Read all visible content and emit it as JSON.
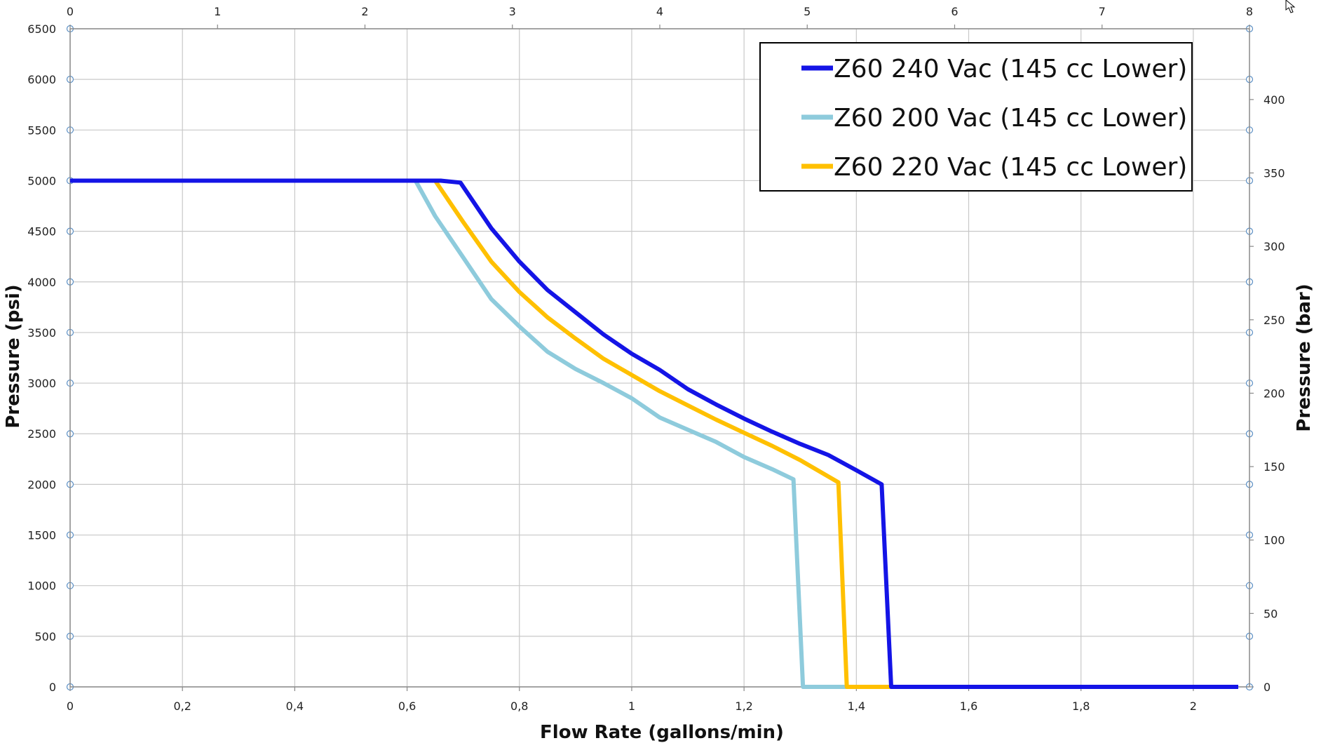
{
  "chart_data": {
    "type": "line",
    "title": "",
    "xlabel": "Flow Rate (gallons/min)",
    "ylabel": "Pressure (psi)",
    "y2label": "Pressure (bar)",
    "xlim": [
      0,
      2.1
    ],
    "ylim": [
      0,
      6500
    ],
    "x_ticks": [
      "0",
      "0,2",
      "0,4",
      "0,6",
      "0,8",
      "1",
      "1,2",
      "1,4",
      "1,6",
      "1,8",
      "2"
    ],
    "x_tick_values": [
      0,
      0.2,
      0.4,
      0.6,
      0.8,
      1.0,
      1.2,
      1.4,
      1.6,
      1.8,
      2.0
    ],
    "y_ticks": [
      "0",
      "500",
      "1000",
      "1500",
      "2000",
      "2500",
      "3000",
      "3500",
      "4000",
      "4500",
      "5000",
      "5500",
      "6000",
      "6500"
    ],
    "y_tick_values": [
      0,
      500,
      1000,
      1500,
      2000,
      2500,
      3000,
      3500,
      4000,
      4500,
      5000,
      5500,
      6000,
      6500
    ],
    "x2lim": [
      0,
      8
    ],
    "x2_ticks": [
      "0",
      "1",
      "2",
      "3",
      "4",
      "5",
      "6",
      "7",
      "8"
    ],
    "x2_tick_values": [
      0,
      1,
      2,
      3,
      4,
      5,
      6,
      7,
      8
    ],
    "y2lim": [
      0,
      448.2
    ],
    "y2_ticks": [
      "0",
      "50",
      "100",
      "150",
      "200",
      "250",
      "300",
      "350",
      "400"
    ],
    "y2_tick_values": [
      0,
      50,
      100,
      150,
      200,
      250,
      300,
      350,
      400
    ],
    "grid": true,
    "legend_position": "top-right",
    "series": [
      {
        "name": "Z60 240 Vac (145 cc Lower)",
        "color": "#1414e6",
        "points": [
          [
            0,
            5000
          ],
          [
            0.66,
            5000
          ],
          [
            0.695,
            4980
          ],
          [
            0.75,
            4530
          ],
          [
            0.8,
            4200
          ],
          [
            0.85,
            3920
          ],
          [
            0.9,
            3700
          ],
          [
            0.95,
            3480
          ],
          [
            1.0,
            3290
          ],
          [
            1.05,
            3130
          ],
          [
            1.1,
            2940
          ],
          [
            1.15,
            2790
          ],
          [
            1.2,
            2650
          ],
          [
            1.25,
            2520
          ],
          [
            1.3,
            2400
          ],
          [
            1.35,
            2290
          ],
          [
            1.4,
            2140
          ],
          [
            1.445,
            2000
          ],
          [
            1.462,
            0
          ],
          [
            2.08,
            0
          ]
        ]
      },
      {
        "name": "Z60 200 Vac (145 cc Lower)",
        "color": "#8ecbdc",
        "points": [
          [
            0,
            5000
          ],
          [
            0.615,
            5000
          ],
          [
            0.65,
            4650
          ],
          [
            0.7,
            4240
          ],
          [
            0.75,
            3830
          ],
          [
            0.8,
            3560
          ],
          [
            0.85,
            3310
          ],
          [
            0.9,
            3140
          ],
          [
            0.95,
            3000
          ],
          [
            1.0,
            2850
          ],
          [
            1.05,
            2660
          ],
          [
            1.1,
            2540
          ],
          [
            1.15,
            2420
          ],
          [
            1.2,
            2270
          ],
          [
            1.25,
            2150
          ],
          [
            1.288,
            2050
          ],
          [
            1.305,
            0
          ],
          [
            2.08,
            0
          ]
        ]
      },
      {
        "name": "Z60 220 Vac (145 cc Lower)",
        "color": "#ffc000",
        "points": [
          [
            0,
            5000
          ],
          [
            0.65,
            5000
          ],
          [
            0.7,
            4590
          ],
          [
            0.75,
            4200
          ],
          [
            0.8,
            3900
          ],
          [
            0.85,
            3650
          ],
          [
            0.9,
            3440
          ],
          [
            0.95,
            3240
          ],
          [
            1.0,
            3080
          ],
          [
            1.05,
            2920
          ],
          [
            1.1,
            2780
          ],
          [
            1.15,
            2640
          ],
          [
            1.2,
            2510
          ],
          [
            1.25,
            2380
          ],
          [
            1.3,
            2240
          ],
          [
            1.368,
            2020
          ],
          [
            1.383,
            0
          ],
          [
            2.08,
            0
          ]
        ]
      }
    ]
  }
}
